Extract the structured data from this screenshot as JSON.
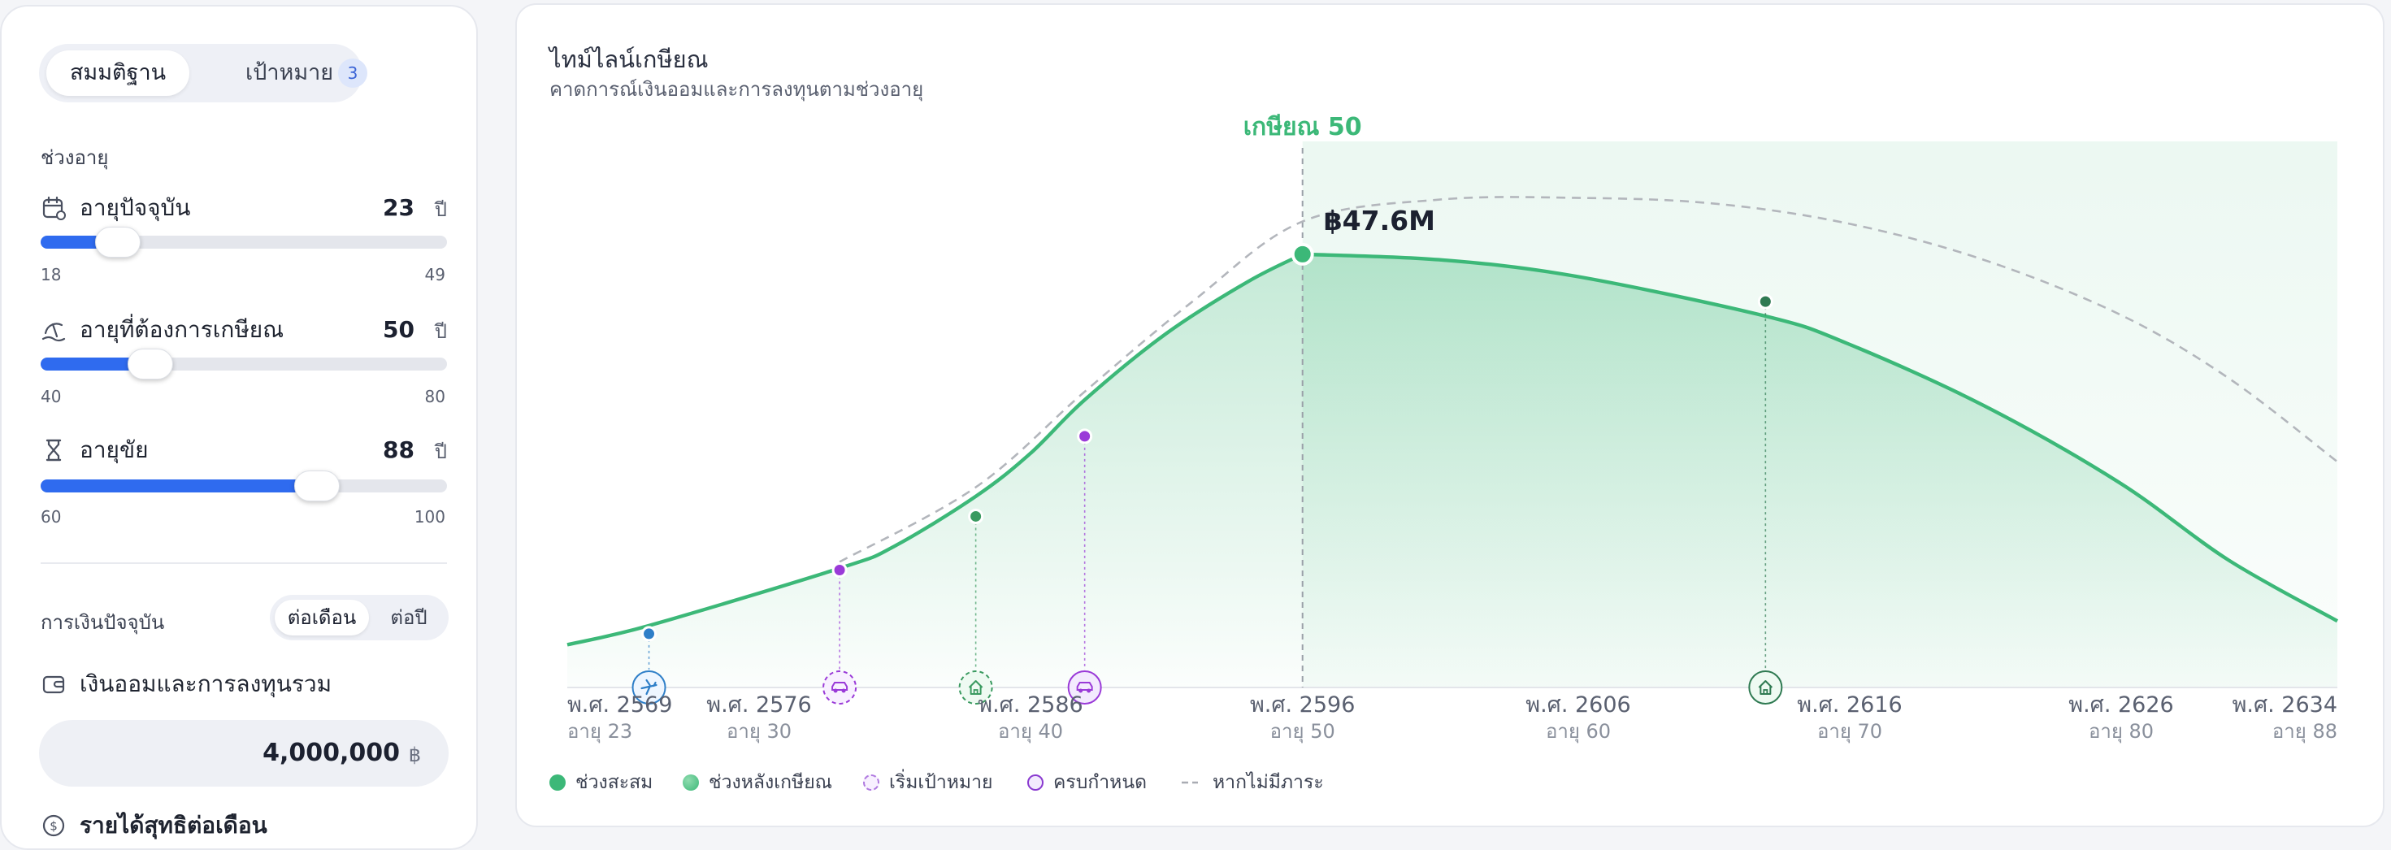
{
  "tabs": {
    "assumptions": "สมมติฐาน",
    "goals": "เป้าหมาย",
    "goals_badge": "3"
  },
  "age_section": {
    "label": "ช่วงอายุ",
    "current_age": {
      "label": "อายุปัจจุบัน",
      "value": 23,
      "unit": "ปี",
      "min": 18,
      "max": 49,
      "level": 0.19
    },
    "retire_age": {
      "label": "อายุที่ต้องการเกษียณ",
      "value": 50,
      "unit": "ปี",
      "min": 40,
      "max": 80,
      "level": 0.27
    },
    "life_age": {
      "label": "อายุขัย",
      "value": 88,
      "unit": "ปี",
      "min": 60,
      "max": 100,
      "level": 0.68
    }
  },
  "finance_section": {
    "label": "การเงินปัจจุบัน",
    "period_month": "ต่อเดือน",
    "period_year": "ต่อปี",
    "savings_label": "เงินออมและการลงทุนรวม",
    "savings_value": "4,000,000",
    "savings_unit": "฿",
    "income_label": "รายได้สุทธิต่อเดือน"
  },
  "timeline": {
    "title": "ไทม์ไลน์เกษียณ",
    "subtitle": "คาดการณ์เงินออมและการลงทุนตามช่วงอายุ",
    "retire_label": "เกษียณ 50",
    "peak_label": "฿47.6M"
  },
  "chart_data": {
    "type": "area",
    "x_axis_ticks": [
      {
        "year": "พ.ศ. 2569",
        "age": "อายุ 23"
      },
      {
        "year": "พ.ศ. 2576",
        "age": "อายุ 30"
      },
      {
        "year": "พ.ศ. 2586",
        "age": "อายุ 40"
      },
      {
        "year": "พ.ศ. 2596",
        "age": "อายุ 50"
      },
      {
        "year": "พ.ศ. 2606",
        "age": "อายุ 60"
      },
      {
        "year": "พ.ศ. 2616",
        "age": "อายุ 70"
      },
      {
        "year": "พ.ศ. 2626",
        "age": "อายุ 80"
      },
      {
        "year": "พ.ศ. 2634",
        "age": "อายุ 88"
      }
    ],
    "xlim": [
      23,
      88
    ],
    "ylim": [
      0,
      60
    ],
    "peak": {
      "age": 50,
      "value": 47.6
    },
    "accumulation": {
      "name": "ช่วงสะสม",
      "color": "#3cb878",
      "points": [
        [
          23,
          4.7
        ],
        [
          26,
          6.8
        ],
        [
          33,
          13.1
        ],
        [
          35,
          15.5
        ],
        [
          38,
          21.0
        ],
        [
          40,
          25.7
        ],
        [
          42,
          31.6
        ],
        [
          45,
          38.9
        ],
        [
          48,
          44.6
        ],
        [
          50,
          47.6
        ]
      ]
    },
    "retirement": {
      "name": "ช่วงหลังเกษียณ",
      "color": "#3cb878",
      "points": [
        [
          50,
          47.6
        ],
        [
          55,
          47.0
        ],
        [
          60,
          45.2
        ],
        [
          67,
          40.8
        ],
        [
          70,
          37.8
        ],
        [
          75,
          31.0
        ],
        [
          80,
          22.5
        ],
        [
          84,
          14.0
        ],
        [
          88,
          7.3
        ]
      ]
    },
    "no_burden": {
      "name": "หากไม่มีภาระ",
      "color": "#b3b6bc",
      "points": [
        [
          33,
          13.8
        ],
        [
          38,
          22.0
        ],
        [
          42,
          32.5
        ],
        [
          46,
          42.5
        ],
        [
          50,
          51.2
        ],
        [
          55,
          53.6
        ],
        [
          60,
          53.8
        ],
        [
          65,
          53.2
        ],
        [
          70,
          51.0
        ],
        [
          75,
          47.0
        ],
        [
          80,
          41.0
        ],
        [
          84,
          34.0
        ],
        [
          88,
          24.8
        ]
      ]
    },
    "markers": [
      {
        "age": 26,
        "value": 5.9,
        "color": "#2f7fc8",
        "icon": "airplane-icon"
      },
      {
        "age": 33,
        "value": 12.9,
        "color": "#9a3ad8",
        "icon": "car-icon"
      },
      {
        "age": 38,
        "value": 18.8,
        "color": "#3a9a60",
        "icon": "home-icon"
      },
      {
        "age": 42,
        "value": 27.6,
        "color": "#9a3ad8",
        "icon": "car-icon"
      },
      {
        "age": 67,
        "value": 42.4,
        "color": "#2f7a52",
        "icon": "home-icon"
      }
    ],
    "legend": [
      {
        "label": "ช่วงสะสม",
        "style": "solid-green"
      },
      {
        "label": "ช่วงหลังเกษียณ",
        "style": "gradient-green"
      },
      {
        "label": "เริ่มเป้าหมาย",
        "style": "dashed-purple"
      },
      {
        "label": "ครบกำหนด",
        "style": "solid-purple"
      },
      {
        "label": "หากไม่มีภาระ",
        "style": "dashed-gray"
      }
    ]
  }
}
